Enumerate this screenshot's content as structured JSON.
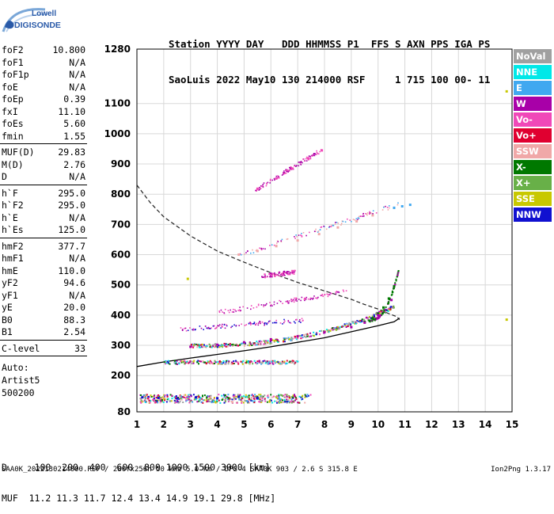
{
  "logo": {
    "line1": "Lowell",
    "line2": "DIGISONDE"
  },
  "header": {
    "line1": "Station YYYY DAY   DDD HHMMSS P1  FFS S AXN PPS IGA PS",
    "line2": "SaoLuis 2022 May10 130 214000 RSF     1 715 100 00- 11"
  },
  "params": [
    {
      "label": "foF2",
      "value": "10.800"
    },
    {
      "label": "foF1",
      "value": "N/A"
    },
    {
      "label": "foF1p",
      "value": "N/A"
    },
    {
      "label": "foE",
      "value": "N/A"
    },
    {
      "label": "foEp",
      "value": "0.39"
    },
    {
      "label": "fxI",
      "value": "11.10"
    },
    {
      "label": "foEs",
      "value": "5.60"
    },
    {
      "label": "fmin",
      "value": "1.55"
    },
    {
      "label": "MUF(D)",
      "value": "29.83"
    },
    {
      "label": "M(D)",
      "value": "2.76"
    },
    {
      "label": "D",
      "value": "N/A"
    },
    {
      "label": "h`F",
      "value": "295.0"
    },
    {
      "label": "h`F2",
      "value": "295.0"
    },
    {
      "label": "h`E",
      "value": "N/A"
    },
    {
      "label": "h`Es",
      "value": "125.0"
    },
    {
      "label": "hmF2",
      "value": "377.7"
    },
    {
      "label": "hmF1",
      "value": "N/A"
    },
    {
      "label": "hmE",
      "value": "110.0"
    },
    {
      "label": "yF2",
      "value": "94.6"
    },
    {
      "label": "yF1",
      "value": "N/A"
    },
    {
      "label": "yE",
      "value": "20.0"
    },
    {
      "label": "B0",
      "value": "88.3"
    },
    {
      "label": "B1",
      "value": "2.54"
    },
    {
      "label": "C-level",
      "value": "33"
    }
  ],
  "auto": {
    "line1": "Auto:",
    "line2": "Artist5",
    "line3": "500200"
  },
  "legend": [
    {
      "label": "NoVal",
      "color": "#a0a0a0",
      "text_color": "#ffffff"
    },
    {
      "label": "NNE",
      "color": "#00e8e8",
      "text_color": "#ffffff"
    },
    {
      "label": "E",
      "color": "#40a8f0",
      "text_color": "#ffffff"
    },
    {
      "label": "W",
      "color": "#a800a8",
      "text_color": "#ffffff"
    },
    {
      "label": "Vo-",
      "color": "#f048b8",
      "text_color": "#ffffff"
    },
    {
      "label": "Vo+",
      "color": "#e00030",
      "text_color": "#ffffff"
    },
    {
      "label": "SSW",
      "color": "#f0a8a8",
      "text_color": "#ffffff"
    },
    {
      "label": "X-",
      "color": "#007800",
      "text_color": "#ffffff"
    },
    {
      "label": "X+",
      "color": "#68b048",
      "text_color": "#ffffff"
    },
    {
      "label": "SSE",
      "color": "#c8c800",
      "text_color": "#ffffff"
    },
    {
      "label": "NNW",
      "color": "#1010d0",
      "text_color": "#ffffff"
    }
  ],
  "table": {
    "line1": "D     100  200  400  600  800 1000 1500 3000 [km]",
    "line2": "MUF  11.2 11.3 11.7 12.4 13.4 14.9 19.1 29.8 [MHz]"
  },
  "footer": {
    "left": "SAA0K_2022130214000.RSF / 280fx256h 50 kHz 5.0 km / DPS-4 SAA0K 903 / 2.6 S 315.8 E",
    "right": "Ion2Png 1.3.17"
  },
  "chart_data": {
    "type": "scatter",
    "x_ticks": [
      1,
      2,
      3,
      4,
      5,
      6,
      7,
      8,
      9,
      10,
      11,
      12,
      13,
      14,
      15
    ],
    "y_ticks": [
      80,
      200,
      300,
      400,
      500,
      600,
      700,
      800,
      900,
      1000,
      1100,
      1280
    ],
    "xlim": [
      1,
      15
    ],
    "ylim": [
      80,
      1280
    ],
    "grid": true,
    "series": [
      {
        "name": "X-",
        "color": "#007800",
        "x": [
          9.5,
          9.8,
          10.0,
          10.2,
          10.4,
          10.6
        ],
        "y": [
          378,
          390,
          405,
          425,
          455,
          495
        ]
      },
      {
        "name": "W",
        "color": "#a800a8",
        "x": [
          3.0,
          4.0,
          5.0,
          6.0,
          7.0,
          8.0,
          9.0,
          9.5,
          10.0,
          10.5
        ],
        "y": [
          295,
          302,
          310,
          320,
          330,
          343,
          360,
          375,
          400,
          450
        ]
      },
      {
        "name": "NNW",
        "color": "#1010d0",
        "x": [
          1.2,
          1.8,
          2.5,
          3.2,
          4.0,
          4.8,
          5.5
        ],
        "y": [
          128,
          126,
          124,
          128,
          125,
          130,
          126
        ]
      },
      {
        "name": "SSW",
        "color": "#f0a8a8",
        "x": [
          4.8,
          5.5,
          6.2,
          7.0,
          7.8,
          8.5,
          9.2,
          9.8,
          10.6
        ],
        "y": [
          600,
          612,
          628,
          647,
          668,
          690,
          710,
          730,
          755
        ]
      },
      {
        "name": "Vo-",
        "color": "#f048b8",
        "x": [
          5.5,
          6.2,
          6.8,
          7.4,
          7.9
        ],
        "y": [
          818,
          852,
          885,
          918,
          945
        ]
      },
      {
        "name": "E",
        "color": "#40a8f0",
        "x": [
          10.6,
          10.9,
          11.2
        ],
        "y": [
          755,
          760,
          765
        ]
      },
      {
        "name": "SSE",
        "color": "#c8c800",
        "x": [
          2.9,
          14.8,
          14.8
        ],
        "y": [
          520,
          1140,
          385
        ]
      }
    ]
  }
}
